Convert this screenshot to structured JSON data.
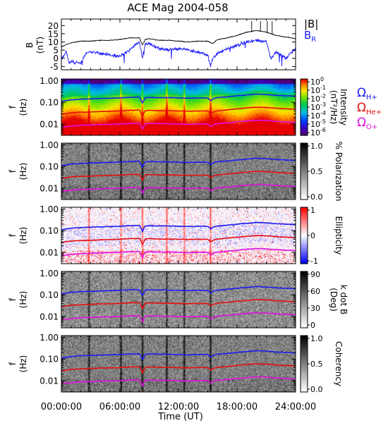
{
  "title": "ACE Mag 2004-058",
  "chart_data": {
    "type": "line",
    "time_ticks": [
      "00:00:00",
      "06:00:00",
      "12:00:00",
      "18:00:00",
      "24:00:00"
    ],
    "xlabel": "Time (UT)",
    "xlim": [
      0,
      24
    ],
    "colors": {
      "b_total": "#000000",
      "b_r": "#1a1aff",
      "h_plus": "#1e1ef0",
      "he_plus": "#e81010",
      "o_plus": "#e010e0"
    },
    "field_panel": {
      "ylabel": "B",
      "yunit": "(nT)",
      "yticks": [
        "20",
        "15",
        "10",
        "5",
        "0",
        "-5"
      ],
      "ylim": [
        -7,
        24
      ],
      "legend": [
        {
          "label": "|B|",
          "color": "#000000"
        },
        {
          "label": "B",
          "subscript": "R",
          "color": "#1a1aff"
        }
      ],
      "series": [
        {
          "name": "|B|",
          "x": [
            0,
            0.5,
            1,
            2,
            3,
            4,
            5,
            6,
            7,
            8,
            8.3,
            8.6,
            9,
            10,
            11,
            12,
            13,
            14,
            15,
            15.5,
            16,
            17,
            18,
            19,
            20,
            21,
            22,
            23,
            24
          ],
          "values": [
            7,
            8.5,
            9.5,
            10.5,
            10.5,
            11,
            11,
            11.5,
            12.5,
            12.5,
            8,
            11.5,
            12,
            11,
            11,
            10.5,
            10,
            10.5,
            10.5,
            9,
            11.5,
            12.5,
            14,
            16,
            17,
            16,
            14,
            13,
            12
          ]
        },
        {
          "name": "B_R",
          "x": [
            0,
            0.5,
            0.8,
            1,
            2,
            2.5,
            3,
            4,
            5,
            6,
            7,
            7.5,
            8,
            8.3,
            8.6,
            9,
            10,
            11,
            12,
            13,
            14,
            15,
            15.3,
            15.5,
            16,
            17,
            18,
            19,
            20,
            21,
            21.5,
            22,
            23,
            24
          ],
          "values": [
            0,
            4,
            -3,
            -2,
            -3,
            3,
            4,
            3,
            2,
            1,
            5,
            8,
            10,
            0,
            9,
            9,
            6,
            5,
            6,
            5,
            4,
            2,
            -5,
            0,
            3,
            6,
            8,
            10,
            11,
            10,
            0,
            4,
            0,
            6
          ]
        }
      ]
    },
    "frequency_axis": {
      "ylabel": "f",
      "yunit": "(Hz)",
      "scale": "log",
      "ylim": [
        0.003,
        1.2
      ],
      "yticks": [
        "1.00",
        "0.10",
        "0.01"
      ]
    },
    "gyrofrequencies": {
      "x": [
        0,
        1,
        2,
        3,
        4,
        5,
        6,
        7,
        8,
        8.3,
        8.6,
        9,
        10,
        11,
        12,
        13,
        14,
        15,
        15.3,
        15.6,
        16,
        17,
        18,
        19,
        20,
        21,
        22,
        23,
        24
      ],
      "series": [
        {
          "name": "Ω H+",
          "values": [
            0.11,
            0.13,
            0.14,
            0.145,
            0.15,
            0.155,
            0.16,
            0.17,
            0.175,
            0.09,
            0.165,
            0.17,
            0.165,
            0.165,
            0.16,
            0.155,
            0.16,
            0.16,
            0.12,
            0.15,
            0.165,
            0.18,
            0.2,
            0.22,
            0.24,
            0.23,
            0.21,
            0.2,
            0.19
          ]
        },
        {
          "name": "Ω He+",
          "values": [
            0.028,
            0.033,
            0.035,
            0.036,
            0.038,
            0.039,
            0.04,
            0.043,
            0.044,
            0.022,
            0.041,
            0.043,
            0.041,
            0.041,
            0.04,
            0.039,
            0.04,
            0.04,
            0.03,
            0.037,
            0.041,
            0.045,
            0.05,
            0.055,
            0.06,
            0.058,
            0.053,
            0.05,
            0.048
          ]
        },
        {
          "name": "Ω O+",
          "values": [
            0.007,
            0.008,
            0.0088,
            0.009,
            0.0095,
            0.0097,
            0.01,
            0.0107,
            0.011,
            0.0055,
            0.0103,
            0.0107,
            0.0103,
            0.0103,
            0.01,
            0.0097,
            0.01,
            0.01,
            0.0075,
            0.0094,
            0.0103,
            0.0113,
            0.0125,
            0.0138,
            0.015,
            0.0145,
            0.0133,
            0.0125,
            0.012
          ]
        }
      ]
    },
    "ion_labels": [
      {
        "symbol": "Ω",
        "subscript": "H+",
        "color": "#1e1ef0"
      },
      {
        "symbol": "Ω",
        "subscript": "He+",
        "color": "#e81010"
      },
      {
        "symbol": "Ω",
        "subscript": "O+",
        "color": "#e010e0"
      }
    ],
    "spectrogram_panels": [
      {
        "name": "intensity",
        "colorbar_label": "Intensity",
        "colorbar_unit": "(nT²/Hz)",
        "colorscale": "rainbow",
        "cbar_ticks": [
          {
            "m": "10",
            "e": "0"
          },
          {
            "m": "10",
            "e": "-1"
          },
          {
            "m": "10",
            "e": "-2"
          },
          {
            "m": "10",
            "e": "-3"
          },
          {
            "m": "10",
            "e": "-4"
          },
          {
            "m": "10",
            "e": "-5"
          },
          {
            "m": "10",
            "e": "-6"
          }
        ]
      },
      {
        "name": "polarization",
        "colorbar_label": "% Polarization",
        "colorscale": "gray",
        "cbar_ticks": [
          "1.0",
          "0.5",
          "0.0"
        ]
      },
      {
        "name": "ellipticity",
        "colorbar_label": "Ellipticity",
        "colorscale": "bwr",
        "cbar_ticks": [
          "1",
          "0",
          "-1"
        ]
      },
      {
        "name": "k-dot-b",
        "colorbar_label": "k dot B",
        "colorbar_unit": "(Deg)",
        "colorscale": "gray",
        "cbar_ticks": [
          "90",
          "60",
          "30",
          "0"
        ]
      },
      {
        "name": "coherency",
        "colorbar_label": "Coherency",
        "colorscale": "gray",
        "cbar_ticks": [
          "1.0",
          "0.5",
          "0.0"
        ]
      }
    ]
  }
}
